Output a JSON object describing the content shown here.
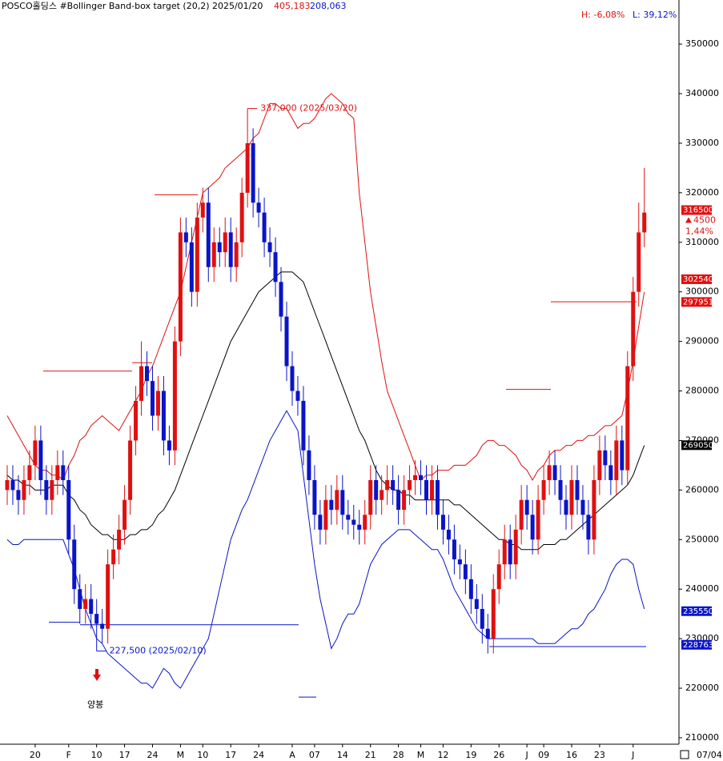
{
  "chart_data": {
    "type": "candlestick",
    "title": "POSCO홀딩스 #Bollinger Band-box target  (20,2) 2025/01/20",
    "title_high": {
      "value": 405183,
      "label": "405,183"
    },
    "title_low": {
      "value": 208063,
      "label": "208,063"
    },
    "range_high": {
      "value": -6.08,
      "label": "H: -6,08%"
    },
    "range_low": {
      "value": 39.12,
      "label": "L: 39,12%"
    },
    "last_date": "07/04",
    "ylim": [
      208700,
      358900
    ],
    "yticks": [
      210000,
      220000,
      230000,
      240000,
      250000,
      260000,
      270000,
      280000,
      290000,
      300000,
      310000,
      320000,
      330000,
      340000,
      350000
    ],
    "up_color": "#e01010",
    "down_color": "#0a14c8",
    "categories": [
      null,
      null,
      null,
      null,
      null,
      "20",
      null,
      null,
      null,
      null,
      null,
      "F",
      null,
      null,
      null,
      null,
      "10",
      null,
      null,
      null,
      null,
      "17",
      null,
      null,
      null,
      null,
      "24",
      null,
      null,
      null,
      null,
      "M",
      null,
      null,
      null,
      "10",
      null,
      null,
      null,
      null,
      "17",
      null,
      null,
      null,
      null,
      "24",
      null,
      null,
      null,
      null,
      null,
      "A",
      null,
      null,
      null,
      "07",
      null,
      null,
      null,
      null,
      "14",
      null,
      null,
      null,
      null,
      "21",
      null,
      null,
      null,
      null,
      "28",
      null,
      null,
      null,
      "M",
      null,
      null,
      null,
      "12",
      null,
      null,
      null,
      null,
      "19",
      null,
      null,
      null,
      null,
      "26",
      null,
      null,
      null,
      null,
      "J",
      null,
      null,
      "09",
      null,
      null,
      null,
      null,
      "16",
      null,
      null,
      null,
      null,
      "23",
      null,
      null,
      null,
      null,
      null,
      "J",
      null,
      null
    ],
    "open": [
      260000,
      262000,
      260000,
      258000,
      262000,
      265000,
      270000,
      262000,
      258000,
      262000,
      265000,
      262000,
      250000,
      240000,
      236000,
      238000,
      235000,
      233000,
      232000,
      245000,
      248000,
      252000,
      258000,
      270000,
      278000,
      285000,
      282000,
      275000,
      280000,
      270000,
      268000,
      290000,
      312000,
      310000,
      300000,
      315000,
      318000,
      305000,
      310000,
      308000,
      312000,
      305000,
      310000,
      320000,
      330000,
      318000,
      316000,
      310000,
      308000,
      302000,
      295000,
      285000,
      280000,
      278000,
      268000,
      262000,
      255000,
      252000,
      258000,
      256000,
      260000,
      255000,
      254000,
      253000,
      252000,
      255000,
      262000,
      258000,
      260000,
      262000,
      260000,
      256000,
      260000,
      262000,
      263000,
      262000,
      258000,
      262000,
      255000,
      252000,
      250000,
      246000,
      245000,
      242000,
      238000,
      236000,
      232000,
      230000,
      240000,
      245000,
      250000,
      245000,
      252000,
      258000,
      255000,
      250000,
      258000,
      262000,
      265000,
      262000,
      258000,
      255000,
      262000,
      258000,
      255000,
      250000,
      262000,
      268000,
      265000,
      262000,
      270000,
      264000,
      285000,
      300000,
      312000
    ],
    "high": [
      265000,
      265000,
      263000,
      265000,
      268000,
      273000,
      273000,
      265000,
      265000,
      268000,
      268000,
      265000,
      253000,
      243000,
      241000,
      241000,
      238000,
      236000,
      248000,
      251000,
      255000,
      261000,
      273000,
      281000,
      290000,
      288000,
      285000,
      283000,
      283000,
      273000,
      293000,
      315000,
      315000,
      313000,
      318000,
      321000,
      321000,
      313000,
      313000,
      315000,
      315000,
      313000,
      323000,
      337000,
      333000,
      321000,
      319000,
      313000,
      311000,
      305000,
      298000,
      288000,
      283000,
      281000,
      271000,
      265000,
      258000,
      261000,
      261000,
      263000,
      263000,
      258000,
      257000,
      256000,
      258000,
      265000,
      265000,
      263000,
      265000,
      265000,
      263000,
      263000,
      265000,
      266000,
      266000,
      265000,
      265000,
      265000,
      258000,
      255000,
      253000,
      249000,
      248000,
      245000,
      241000,
      239000,
      235000,
      243000,
      248000,
      253000,
      253000,
      255000,
      261000,
      261000,
      258000,
      261000,
      265000,
      268000,
      268000,
      265000,
      261000,
      265000,
      265000,
      261000,
      258000,
      265000,
      271000,
      271000,
      268000,
      273000,
      273000,
      288000,
      303000,
      318000,
      325000
    ],
    "low": [
      257000,
      257000,
      255000,
      255000,
      259000,
      262000,
      259000,
      255000,
      255000,
      259000,
      259000,
      247000,
      237000,
      233000,
      233000,
      232000,
      227500,
      229000,
      229000,
      242000,
      245000,
      249000,
      255000,
      267000,
      275000,
      279000,
      272000,
      272000,
      267000,
      265000,
      265000,
      287000,
      307000,
      297000,
      297000,
      312000,
      302000,
      302000,
      305000,
      305000,
      302000,
      302000,
      307000,
      317000,
      315000,
      313000,
      307000,
      305000,
      299000,
      292000,
      282000,
      277000,
      275000,
      265000,
      259000,
      252000,
      249000,
      249000,
      253000,
      253000,
      252000,
      251000,
      250000,
      249000,
      249000,
      252000,
      255000,
      255000,
      257000,
      257000,
      253000,
      253000,
      257000,
      259000,
      259000,
      255000,
      255000,
      252000,
      249000,
      247000,
      243000,
      242000,
      239000,
      235000,
      233000,
      229000,
      227000,
      227000,
      237000,
      242000,
      242000,
      242000,
      249000,
      252000,
      247000,
      247000,
      255000,
      259000,
      259000,
      255000,
      252000,
      252000,
      255000,
      252000,
      247000,
      247000,
      259000,
      262000,
      259000,
      259000,
      261000,
      261000,
      282000,
      297000,
      309000
    ],
    "close": [
      262000,
      260000,
      258000,
      262000,
      265000,
      270000,
      262000,
      258000,
      262000,
      265000,
      262000,
      250000,
      240000,
      236000,
      238000,
      235000,
      233000,
      232000,
      245000,
      248000,
      252000,
      258000,
      270000,
      278000,
      285000,
      282000,
      275000,
      280000,
      270000,
      268000,
      290000,
      312000,
      310000,
      300000,
      315000,
      318000,
      305000,
      310000,
      308000,
      312000,
      305000,
      310000,
      320000,
      330000,
      318000,
      316000,
      310000,
      308000,
      302000,
      295000,
      285000,
      280000,
      278000,
      268000,
      262000,
      255000,
      252000,
      258000,
      256000,
      260000,
      255000,
      254000,
      253000,
      252000,
      255000,
      262000,
      258000,
      260000,
      262000,
      260000,
      256000,
      260000,
      262000,
      263000,
      262000,
      258000,
      262000,
      255000,
      252000,
      250000,
      246000,
      245000,
      242000,
      238000,
      236000,
      232000,
      230000,
      240000,
      245000,
      250000,
      245000,
      252000,
      258000,
      255000,
      250000,
      258000,
      262000,
      265000,
      262000,
      258000,
      255000,
      262000,
      258000,
      255000,
      250000,
      262000,
      268000,
      265000,
      262000,
      270000,
      264000,
      285000,
      300000,
      312000,
      316000
    ],
    "bands": [
      {
        "color": "#e01010",
        "values": [
          275000,
          273000,
          271000,
          269000,
          267000,
          265000,
          264000,
          264000,
          263000,
          263000,
          262000,
          265000,
          267000,
          270000,
          271000,
          273000,
          274000,
          275000,
          274000,
          273000,
          272000,
          274000,
          276000,
          278000,
          280000,
          283000,
          285000,
          288000,
          291000,
          294000,
          297000,
          300000,
          305000,
          310000,
          315000,
          320000,
          321000,
          322000,
          323000,
          325000,
          326000,
          327000,
          328000,
          329000,
          331000,
          332000,
          335000,
          338000,
          338000,
          337000,
          337000,
          335000,
          333000,
          334000,
          334000,
          335000,
          337000,
          339000,
          340000,
          339000,
          338000,
          336000,
          335000,
          320000,
          310000,
          300000,
          293000,
          286000,
          280000,
          277000,
          274000,
          271000,
          268000,
          265000,
          262000,
          263000,
          263000,
          264000,
          264000,
          264000,
          265000,
          265000,
          265000,
          266000,
          267000,
          269000,
          270000,
          270000,
          269000,
          269000,
          268000,
          267000,
          265000,
          264000,
          262000,
          264000,
          265000,
          267000,
          268000,
          268000,
          269000,
          269000,
          270000,
          270000,
          271000,
          271000,
          272000,
          273000,
          273000,
          274000,
          275000,
          280000,
          286000,
          293000,
          300000
        ]
      },
      {
        "color": "#000000",
        "values": [
          263000,
          262000,
          262000,
          261000,
          261000,
          260000,
          260000,
          260000,
          261000,
          261000,
          261000,
          259000,
          258000,
          256000,
          255000,
          253000,
          252000,
          251000,
          251000,
          250000,
          250000,
          250000,
          251000,
          251000,
          252000,
          252000,
          253000,
          255000,
          256000,
          258000,
          260000,
          263000,
          266000,
          269000,
          272000,
          275000,
          278000,
          281000,
          284000,
          287000,
          290000,
          292000,
          294000,
          296000,
          298000,
          300000,
          301000,
          302000,
          303000,
          304000,
          304000,
          304000,
          303000,
          302000,
          299000,
          296000,
          293000,
          290000,
          287000,
          284000,
          281000,
          278000,
          275000,
          272000,
          270000,
          267000,
          264000,
          262000,
          261000,
          260000,
          260000,
          259000,
          259000,
          258000,
          258000,
          258000,
          258000,
          258000,
          258000,
          258000,
          257000,
          257000,
          256000,
          255000,
          254000,
          253000,
          252000,
          251000,
          250000,
          250000,
          249000,
          249000,
          248000,
          248000,
          248000,
          248000,
          249000,
          249000,
          249000,
          250000,
          250000,
          251000,
          252000,
          253000,
          254000,
          255000,
          256000,
          257000,
          258000,
          259000,
          260000,
          261000,
          263000,
          266000,
          269000
        ]
      },
      {
        "color": "#0a14c8",
        "values": [
          250000,
          249000,
          249000,
          250000,
          250000,
          250000,
          250000,
          250000,
          250000,
          250000,
          250000,
          247000,
          244000,
          240000,
          236000,
          233000,
          230000,
          229000,
          227000,
          226000,
          225000,
          224000,
          223000,
          222000,
          221000,
          221000,
          220000,
          222000,
          224000,
          223000,
          221000,
          220000,
          222000,
          224000,
          226000,
          228000,
          230000,
          235000,
          240000,
          245000,
          250000,
          253000,
          256000,
          258000,
          261000,
          264000,
          267000,
          270000,
          272000,
          274000,
          276000,
          274000,
          272000,
          263000,
          254000,
          245000,
          238000,
          233000,
          228000,
          230000,
          233000,
          235000,
          235000,
          237000,
          241000,
          245000,
          247000,
          249000,
          250000,
          251000,
          252000,
          252000,
          252000,
          251000,
          250000,
          249000,
          248000,
          248000,
          246000,
          243000,
          240000,
          238000,
          236000,
          234000,
          232000,
          231000,
          230000,
          230000,
          230000,
          230000,
          230000,
          230000,
          230000,
          230000,
          230000,
          229000,
          229000,
          229000,
          229000,
          230000,
          231000,
          232000,
          232000,
          233000,
          235000,
          236000,
          238000,
          240000,
          243000,
          245000,
          246000,
          246000,
          245000,
          240000,
          236000
        ]
      }
    ],
    "target_lines": [
      {
        "value": 319600,
        "color": "#e01010"
      },
      {
        "value": 284000,
        "color": "#e01010"
      },
      {
        "value": 285700,
        "color": "#e01010"
      },
      {
        "value": 298000,
        "color": "#e01010"
      },
      {
        "value": 280300,
        "color": "#e01010"
      },
      {
        "value": 233300,
        "color": "#0a14c8"
      },
      {
        "value": 232800,
        "color": "#0a14c8"
      },
      {
        "value": 218200,
        "color": "#0a14c8"
      },
      {
        "value": 228400,
        "color": "#0a14c8"
      }
    ],
    "annotations": [
      {
        "value": 337000,
        "label": "337,000 (2025/03/20)",
        "color": "#e01010"
      },
      {
        "value": 227500,
        "label": "227,500 (2025/02/10)",
        "color": "#0a14c8"
      }
    ],
    "signal_label": "양봉",
    "price_tags": [
      {
        "value": 316500,
        "color": "#e01010"
      },
      {
        "value": 302540,
        "color": "#e01010"
      },
      {
        "value": 297951,
        "color": "#e01010"
      },
      {
        "value": 269050,
        "color": "#000000"
      },
      {
        "value": 235550,
        "color": "#0a14c8"
      },
      {
        "value": 228763,
        "color": "#0a14c8"
      }
    ],
    "change": 4500,
    "change_pct": "1,44%"
  }
}
